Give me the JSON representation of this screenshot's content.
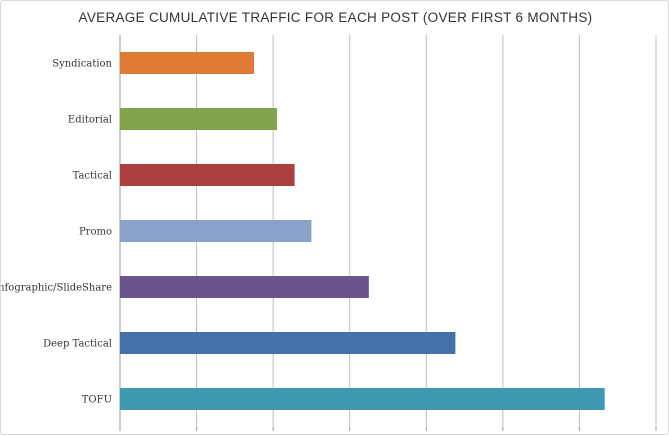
{
  "chart_data": {
    "type": "bar",
    "orientation": "horizontal",
    "title": "AVERAGE CUMULATIVE TRAFFIC FOR EACH POST (OVER FIRST 6 MONTHS)",
    "xlabel": "",
    "ylabel": "",
    "categories": [
      "Syndication",
      "Editorial",
      "Tactical",
      "Promo",
      "Infographic/SlideShare",
      "Deep Tactical",
      "TOFU"
    ],
    "values": [
      1.75,
      2.05,
      2.28,
      2.5,
      3.25,
      4.38,
      6.33
    ],
    "xlim": [
      0,
      7
    ],
    "colors": [
      "#e07b35",
      "#82a34a",
      "#ad3f3e",
      "#8aa2c9",
      "#6a548c",
      "#4670aa",
      "#3d9ab0"
    ],
    "grid": true,
    "legend": "none"
  }
}
